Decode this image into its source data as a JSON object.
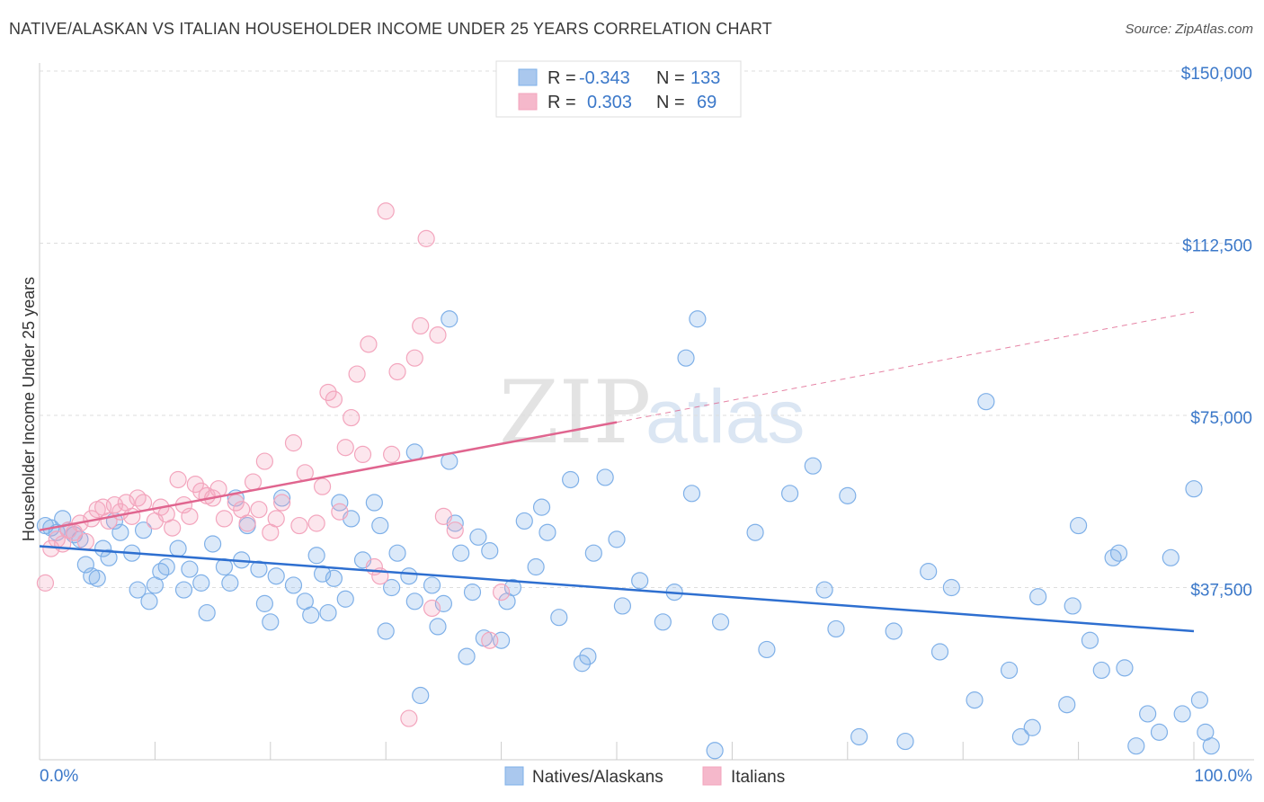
{
  "title": "NATIVE/ALASKAN VS ITALIAN HOUSEHOLDER INCOME UNDER 25 YEARS CORRELATION CHART",
  "source": "Source: ZipAtlas.com",
  "watermark": {
    "zip": "ZIP",
    "atlas": "atlas"
  },
  "legend_top": [
    {
      "label_r": "R =",
      "r": "-0.343",
      "label_n": "N =",
      "n": "133",
      "color": "#aac8ee"
    },
    {
      "label_r": "R =",
      "r": "0.303",
      "label_n": "N =",
      "n": "69",
      "color": "#f5b8cb"
    }
  ],
  "legend_bottom": [
    {
      "name": "Natives/Alaskans",
      "color": "#aac8ee"
    },
    {
      "name": "Italians",
      "color": "#f5b8cb"
    }
  ],
  "chart_data": {
    "type": "scatter",
    "title": "NATIVE/ALASKAN VS ITALIAN HOUSEHOLDER INCOME UNDER 25 YEARS CORRELATION CHART",
    "xlabel": "",
    "ylabel": "Householder Income Under 25 years",
    "xlim": [
      0,
      100
    ],
    "ylim": [
      0,
      150000
    ],
    "x_tick_labels": [
      "0.0%",
      "100.0%"
    ],
    "y_ticks": [
      {
        "value": 37500,
        "label": "$37,500"
      },
      {
        "value": 75000,
        "label": "$75,000"
      },
      {
        "value": 112500,
        "label": "$112,500"
      },
      {
        "value": 150000,
        "label": "$150,000"
      }
    ],
    "series": [
      {
        "name": "Natives/Alaskans",
        "color": "#7fb0e8",
        "trend": {
          "x0": 0,
          "y0": 46500,
          "x1": 100,
          "y1": 28000,
          "color": "#2e6fd0"
        },
        "points": [
          [
            0.5,
            51000
          ],
          [
            1,
            50500
          ],
          [
            1.5,
            49500
          ],
          [
            2,
            52500
          ],
          [
            2.5,
            50000
          ],
          [
            3,
            49000
          ],
          [
            3.5,
            48000
          ],
          [
            4,
            42500
          ],
          [
            4.5,
            40000
          ],
          [
            5,
            39500
          ],
          [
            5.5,
            46000
          ],
          [
            6,
            44000
          ],
          [
            6.5,
            52000
          ],
          [
            7,
            49500
          ],
          [
            8,
            45000
          ],
          [
            8.5,
            37000
          ],
          [
            9,
            50000
          ],
          [
            9.5,
            34500
          ],
          [
            10,
            38000
          ],
          [
            10.5,
            41000
          ],
          [
            11,
            42000
          ],
          [
            12,
            46000
          ],
          [
            12.5,
            37000
          ],
          [
            13,
            41500
          ],
          [
            14,
            38500
          ],
          [
            14.5,
            32000
          ],
          [
            15,
            47000
          ],
          [
            16,
            42000
          ],
          [
            16.5,
            38500
          ],
          [
            17,
            57000
          ],
          [
            17.5,
            43500
          ],
          [
            18,
            51000
          ],
          [
            19,
            41500
          ],
          [
            19.5,
            34000
          ],
          [
            20,
            30000
          ],
          [
            20.5,
            40000
          ],
          [
            21,
            57000
          ],
          [
            22,
            38000
          ],
          [
            23,
            34500
          ],
          [
            23.5,
            31500
          ],
          [
            24,
            44500
          ],
          [
            24.5,
            40500
          ],
          [
            25,
            32000
          ],
          [
            25.5,
            39500
          ],
          [
            26,
            56000
          ],
          [
            26.5,
            35000
          ],
          [
            27,
            52500
          ],
          [
            28,
            43500
          ],
          [
            29,
            56000
          ],
          [
            29.5,
            51000
          ],
          [
            30,
            28000
          ],
          [
            30.5,
            37500
          ],
          [
            31,
            45000
          ],
          [
            32,
            40000
          ],
          [
            32.5,
            34500
          ],
          [
            33,
            14000
          ],
          [
            32.5,
            67000
          ],
          [
            34,
            38000
          ],
          [
            34.5,
            29000
          ],
          [
            35,
            34000
          ],
          [
            35.5,
            96000
          ],
          [
            35.5,
            65000
          ],
          [
            36,
            51500
          ],
          [
            36.5,
            45000
          ],
          [
            37,
            22500
          ],
          [
            37.5,
            36500
          ],
          [
            38,
            48500
          ],
          [
            38.5,
            26500
          ],
          [
            39,
            45500
          ],
          [
            40,
            26000
          ],
          [
            40.5,
            34500
          ],
          [
            41,
            37500
          ],
          [
            42,
            52000
          ],
          [
            43,
            42000
          ],
          [
            43.5,
            55000
          ],
          [
            44,
            49500
          ],
          [
            45,
            31000
          ],
          [
            46,
            61000
          ],
          [
            47,
            21000
          ],
          [
            47.5,
            22500
          ],
          [
            48,
            45000
          ],
          [
            49,
            61500
          ],
          [
            50,
            48000
          ],
          [
            50.5,
            33500
          ],
          [
            52,
            39000
          ],
          [
            54,
            30000
          ],
          [
            55,
            36500
          ],
          [
            56,
            87500
          ],
          [
            56.5,
            58000
          ],
          [
            57,
            96000
          ],
          [
            58.5,
            2000
          ],
          [
            59,
            30000
          ],
          [
            62,
            49500
          ],
          [
            63,
            24000
          ],
          [
            65,
            58000
          ],
          [
            67,
            64000
          ],
          [
            68,
            37000
          ],
          [
            69,
            28500
          ],
          [
            70,
            57500
          ],
          [
            71,
            5000
          ],
          [
            74,
            28000
          ],
          [
            75,
            4000
          ],
          [
            77,
            41000
          ],
          [
            78,
            23500
          ],
          [
            79,
            37500
          ],
          [
            81,
            13000
          ],
          [
            82,
            78000
          ],
          [
            84,
            19500
          ],
          [
            85,
            5000
          ],
          [
            86,
            7000
          ],
          [
            86.5,
            35500
          ],
          [
            89,
            12000
          ],
          [
            89.5,
            33500
          ],
          [
            90,
            51000
          ],
          [
            91,
            26000
          ],
          [
            92,
            19500
          ],
          [
            93,
            44000
          ],
          [
            93.5,
            45000
          ],
          [
            94,
            20000
          ],
          [
            95,
            3000
          ],
          [
            96,
            10000
          ],
          [
            97,
            6000
          ],
          [
            98,
            44000
          ],
          [
            99,
            10000
          ],
          [
            100,
            59000
          ],
          [
            100.5,
            13000
          ],
          [
            101,
            6000
          ],
          [
            101.5,
            3000
          ]
        ]
      },
      {
        "name": "Italians",
        "color": "#f3a5bd",
        "trend": {
          "x0": 0,
          "y0": 50000,
          "x1": 50,
          "y1": 73500,
          "color": "#e0658f",
          "dashed_x1": 100,
          "dashed_y1": 97500
        },
        "points": [
          [
            0.5,
            38500
          ],
          [
            1,
            46000
          ],
          [
            1.5,
            48000
          ],
          [
            2,
            47000
          ],
          [
            2.5,
            50000
          ],
          [
            3,
            49500
          ],
          [
            3.5,
            51500
          ],
          [
            4,
            47500
          ],
          [
            4.5,
            52500
          ],
          [
            5,
            54500
          ],
          [
            5.5,
            55000
          ],
          [
            6,
            52000
          ],
          [
            6.5,
            55500
          ],
          [
            7,
            54000
          ],
          [
            7.5,
            56000
          ],
          [
            8,
            53000
          ],
          [
            8.5,
            57000
          ],
          [
            9,
            56000
          ],
          [
            10,
            52000
          ],
          [
            10.5,
            55000
          ],
          [
            11,
            53500
          ],
          [
            11.5,
            50500
          ],
          [
            12,
            61000
          ],
          [
            12.5,
            55500
          ],
          [
            13,
            53000
          ],
          [
            13.5,
            60000
          ],
          [
            14,
            58500
          ],
          [
            14.5,
            57500
          ],
          [
            15,
            57000
          ],
          [
            15.5,
            59000
          ],
          [
            16,
            52500
          ],
          [
            17,
            56000
          ],
          [
            17.5,
            54500
          ],
          [
            18,
            51500
          ],
          [
            18.5,
            60500
          ],
          [
            19,
            54500
          ],
          [
            19.5,
            65000
          ],
          [
            20,
            49500
          ],
          [
            20.5,
            52500
          ],
          [
            21,
            56000
          ],
          [
            22,
            69000
          ],
          [
            22.5,
            51000
          ],
          [
            23,
            62500
          ],
          [
            24,
            51500
          ],
          [
            24.5,
            59500
          ],
          [
            25,
            80000
          ],
          [
            25.5,
            78500
          ],
          [
            26,
            54000
          ],
          [
            26.5,
            68000
          ],
          [
            27,
            74500
          ],
          [
            27.5,
            84000
          ],
          [
            28,
            66500
          ],
          [
            28.5,
            90500
          ],
          [
            29,
            42000
          ],
          [
            29.5,
            40000
          ],
          [
            30,
            119500
          ],
          [
            30.5,
            66500
          ],
          [
            31,
            84500
          ],
          [
            32,
            9000
          ],
          [
            32.5,
            87500
          ],
          [
            33,
            94500
          ],
          [
            33.5,
            113500
          ],
          [
            34,
            33000
          ],
          [
            34.5,
            92500
          ],
          [
            35,
            53000
          ],
          [
            36,
            50000
          ],
          [
            39,
            26000
          ],
          [
            40,
            36500
          ]
        ]
      }
    ]
  }
}
